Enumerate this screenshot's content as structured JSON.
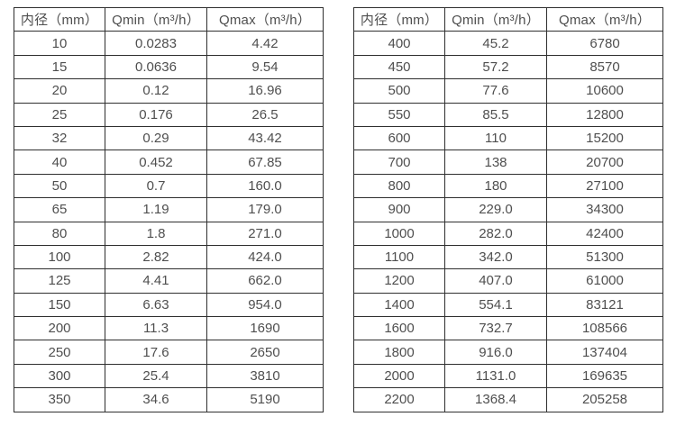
{
  "page": {
    "background_color": "#ffffff",
    "border_color": "#2f2f2f",
    "text_color": "#4f4f4f"
  },
  "tables": [
    {
      "id": "flow-table-small-diameters",
      "headers": [
        "内径（mm）",
        "Qmin（m³/h）",
        "Qmax（m³/h）"
      ],
      "rows": [
        [
          "10",
          "0.0283",
          "4.42"
        ],
        [
          "15",
          "0.0636",
          "9.54"
        ],
        [
          "20",
          "0.12",
          "16.96"
        ],
        [
          "25",
          "0.176",
          "26.5"
        ],
        [
          "32",
          "0.29",
          "43.42"
        ],
        [
          "40",
          "0.452",
          "67.85"
        ],
        [
          "50",
          "0.7",
          "160.0"
        ],
        [
          "65",
          "1.19",
          "179.0"
        ],
        [
          "80",
          "1.8",
          "271.0"
        ],
        [
          "100",
          "2.82",
          "424.0"
        ],
        [
          "125",
          "4.41",
          "662.0"
        ],
        [
          "150",
          "6.63",
          "954.0"
        ],
        [
          "200",
          "11.3",
          "1690"
        ],
        [
          "250",
          "17.6",
          "2650"
        ],
        [
          "300",
          "25.4",
          "3810"
        ],
        [
          "350",
          "34.6",
          "5190"
        ]
      ]
    },
    {
      "id": "flow-table-large-diameters",
      "headers": [
        "内径（mm）",
        "Qmin（m³/h）",
        "Qmax（m³/h）"
      ],
      "rows": [
        [
          "400",
          "45.2",
          "6780"
        ],
        [
          "450",
          "57.2",
          "8570"
        ],
        [
          "500",
          "77.6",
          "10600"
        ],
        [
          "550",
          "85.5",
          "12800"
        ],
        [
          "600",
          "110",
          "15200"
        ],
        [
          "700",
          "138",
          "20700"
        ],
        [
          "800",
          "180",
          "27100"
        ],
        [
          "900",
          "229.0",
          "34300"
        ],
        [
          "1000",
          "282.0",
          "42400"
        ],
        [
          "1100",
          "342.0",
          "51300"
        ],
        [
          "1200",
          "407.0",
          "61000"
        ],
        [
          "1400",
          "554.1",
          "83121"
        ],
        [
          "1600",
          "732.7",
          "108566"
        ],
        [
          "1800",
          "916.0",
          "137404"
        ],
        [
          "2000",
          "1131.0",
          "169635"
        ],
        [
          "2200",
          "1368.4",
          "205258"
        ]
      ]
    }
  ]
}
